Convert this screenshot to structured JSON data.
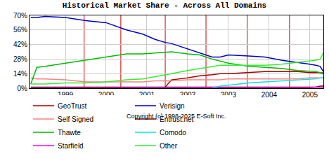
{
  "chart_data": {
    "type": "line",
    "title": "Historical Market Share - Across All Domains",
    "annotations": [
      "Copyright (c) 1998-2025 E-Soft Inc."
    ],
    "x": [
      1998.15,
      1998.3,
      1998.5,
      1999,
      1999.5,
      2000,
      2000.5,
      2000.9,
      2001.2,
      2001.45,
      2001.6,
      2002,
      2002.3,
      2002.6,
      2002.8,
      2003,
      2003.5,
      2003.9,
      2004.3,
      2004.7,
      2005,
      2005.15,
      2005.25,
      2005.33
    ],
    "series": [
      {
        "name": "GeoTrust",
        "color": "#aa0000",
        "values": [
          0,
          0,
          0,
          0,
          0,
          0,
          0,
          0,
          0,
          1,
          8,
          10,
          12,
          13,
          14,
          14,
          15,
          16,
          16,
          16,
          15,
          15,
          15,
          14
        ]
      },
      {
        "name": "Verisign",
        "color": "#0000cc",
        "values": [
          68,
          68,
          69,
          68,
          65,
          63,
          56,
          52,
          47,
          44,
          43,
          38,
          34,
          30,
          30,
          32,
          31,
          30,
          27,
          25,
          23,
          22,
          21,
          16
        ]
      },
      {
        "name": "Self Signed",
        "color": "#ff8080",
        "values": [
          10,
          9,
          9,
          8,
          6,
          6,
          6,
          6,
          7,
          7,
          7,
          8,
          8,
          8,
          8,
          9,
          9,
          9,
          9,
          9,
          10,
          10,
          10,
          10
        ]
      },
      {
        "name": "Entrust.net",
        "color": "#660000",
        "values": [
          1,
          1,
          1,
          1,
          1,
          1,
          1,
          1,
          1,
          1,
          1,
          1,
          1,
          1,
          1,
          1,
          1,
          1,
          1,
          1,
          1,
          1,
          2,
          2
        ]
      },
      {
        "name": "Thawte",
        "color": "#00bb00",
        "values": [
          4,
          20,
          21,
          24,
          27,
          30,
          33,
          33,
          34,
          35,
          35,
          33,
          32,
          28,
          26,
          24,
          21,
          20,
          19,
          17,
          16,
          16,
          15,
          15
        ]
      },
      {
        "name": "Comodo",
        "color": "#00e5e5",
        "values": [
          0,
          0,
          0,
          0,
          0,
          0,
          0,
          0,
          0,
          0,
          0,
          0,
          0,
          0.5,
          2,
          3,
          5,
          6,
          7,
          8,
          9,
          9,
          10,
          10
        ]
      },
      {
        "name": "Starfield",
        "color": "#ff00ff",
        "values": [
          0,
          0,
          0,
          0,
          0,
          0,
          0,
          0,
          0,
          0,
          0,
          0,
          0,
          0,
          0,
          0,
          0,
          0,
          0,
          0.5,
          0.5,
          1,
          1,
          1
        ]
      },
      {
        "name": "Other",
        "color": "#33ee33",
        "values": [
          4,
          4,
          4,
          5,
          5,
          6,
          8,
          9,
          11,
          13,
          14,
          17,
          19,
          21,
          22,
          22,
          22,
          22,
          23,
          25,
          26,
          27,
          28,
          34
        ]
      }
    ],
    "vlines": [
      1999.46,
      2000.36,
      2001.45,
      2002.45,
      2003.46,
      2004.5
    ],
    "xlim": [
      1998.12,
      2005.33
    ],
    "xticks": [
      1999,
      2000,
      2001,
      2002,
      2003,
      2004,
      2005
    ],
    "ylim": [
      0,
      70
    ],
    "yticks": [
      {
        "value": 0,
        "label": "0%"
      },
      {
        "value": 14,
        "label": "14%"
      },
      {
        "value": 28,
        "label": "28%"
      },
      {
        "value": 42,
        "label": "42%"
      },
      {
        "value": 56,
        "label": "56%"
      },
      {
        "value": 70,
        "label": "70%"
      }
    ],
    "grid": true,
    "legend": "bottom"
  }
}
